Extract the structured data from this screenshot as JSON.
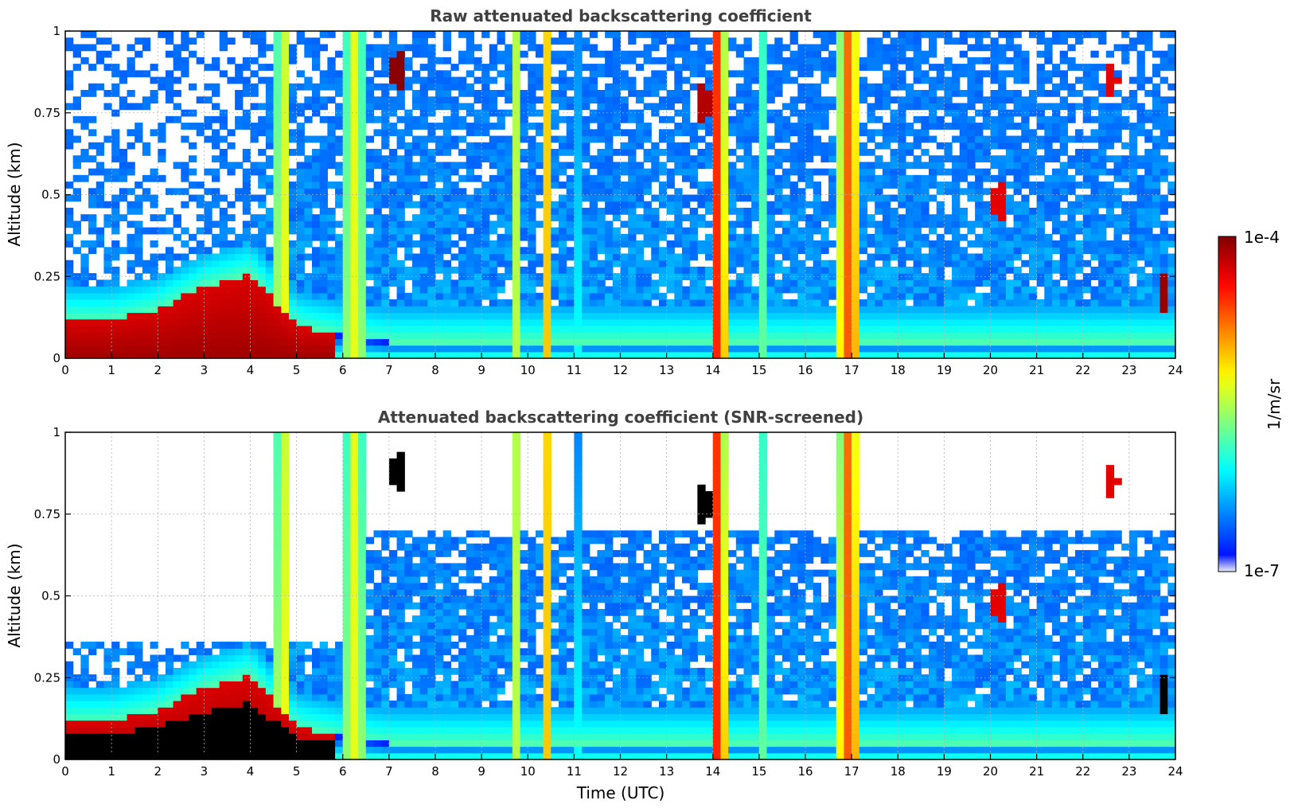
{
  "chart_data": [
    {
      "type": "heatmap",
      "title": "Raw attenuated backscattering coefficient",
      "xlabel": "",
      "ylabel": "Altitude (km)",
      "xlim": [
        0,
        24
      ],
      "ylim": [
        0,
        1
      ],
      "x_ticks": [
        "0",
        "1",
        "2",
        "3",
        "4",
        "5",
        "6",
        "7",
        "8",
        "9",
        "10",
        "11",
        "12",
        "13",
        "14",
        "15",
        "16",
        "17",
        "18",
        "19",
        "20",
        "21",
        "22",
        "23",
        "24"
      ],
      "y_ticks": [
        "0",
        "0.25",
        "0.5",
        "0.75",
        "1"
      ],
      "grid": true,
      "screened": false
    },
    {
      "type": "heatmap",
      "title": "Attenuated backscattering coefficient (SNR-screened)",
      "xlabel": "Time (UTC)",
      "ylabel": "Altitude (km)",
      "xlim": [
        0,
        24
      ],
      "ylim": [
        0,
        1
      ],
      "x_ticks": [
        "0",
        "1",
        "2",
        "3",
        "4",
        "5",
        "6",
        "7",
        "8",
        "9",
        "10",
        "11",
        "12",
        "13",
        "14",
        "15",
        "16",
        "17",
        "18",
        "19",
        "20",
        "21",
        "22",
        "23",
        "24"
      ],
      "y_ticks": [
        "0",
        "0.25",
        "0.5",
        "0.75",
        "1"
      ],
      "grid": true,
      "screened": true
    }
  ],
  "colorbar": {
    "label": "1/m/sr",
    "min_label": "1e-7",
    "max_label": "1e-4",
    "scale": "log",
    "colormap": "jet"
  },
  "features": {
    "rain_columns": [
      {
        "center": 4.7,
        "width": 0.35,
        "level": 0.66
      },
      {
        "center": 6.25,
        "width": 0.6,
        "level": 0.6
      },
      {
        "center": 9.75,
        "width": 0.12,
        "level": 0.55
      },
      {
        "center": 10.4,
        "width": 0.3,
        "level": 0.7
      },
      {
        "center": 11.15,
        "width": 0.15,
        "level": 0.5
      },
      {
        "center": 14.1,
        "width": 0.35,
        "level": 0.86
      },
      {
        "center": 15.05,
        "width": 0.25,
        "level": 0.5
      },
      {
        "center": 16.95,
        "width": 0.45,
        "level": 0.82
      }
    ],
    "aerosol_layer_top_km": [
      [
        0,
        0.12
      ],
      [
        1,
        0.12
      ],
      [
        2,
        0.15
      ],
      [
        3,
        0.22
      ],
      [
        4,
        0.26
      ],
      [
        5,
        0.1
      ],
      [
        6,
        0.07
      ],
      [
        7,
        0.05
      ],
      [
        24,
        0.05
      ]
    ],
    "high_cloud_patches": [
      {
        "t": 7.2,
        "h": 0.88,
        "level": 0.99
      },
      {
        "t": 13.8,
        "h": 0.78,
        "level": 0.95
      },
      {
        "t": 22.6,
        "h": 0.85,
        "level": 0.9
      },
      {
        "t": 23.75,
        "h": 0.2,
        "level": 0.98
      },
      {
        "t": 20.2,
        "h": 0.48,
        "level": 0.9
      }
    ]
  }
}
